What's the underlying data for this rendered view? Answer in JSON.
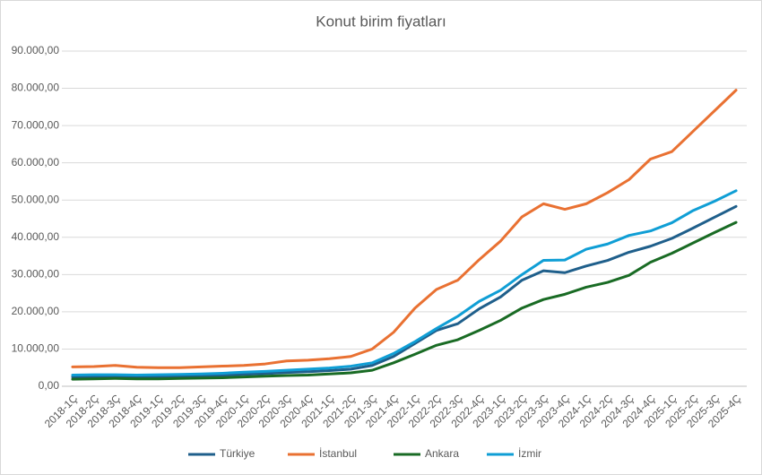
{
  "chart_data": {
    "type": "line",
    "title": "Konut birim fiyatları",
    "categories": [
      "2018-1Ç",
      "2018-2Ç",
      "2018-3Ç",
      "2018-4Ç",
      "2019-1Ç",
      "2019-2Ç",
      "2019-3Ç",
      "2019-4Ç",
      "2020-1Ç",
      "2020-2Ç",
      "2020-3Ç",
      "2020-4Ç",
      "2021-1Ç",
      "2021-2Ç",
      "2021-3Ç",
      "2021-4Ç",
      "2022-1Ç",
      "2022-2Ç",
      "2022-3Ç",
      "2022-4Ç",
      "2023-1Ç",
      "2023-2Ç",
      "2023-3Ç",
      "2023-4Ç",
      "2024-1Ç",
      "2024-2Ç",
      "2024-3Ç",
      "2024-4Ç",
      "2025-1Ç",
      "2025-2Ç",
      "2025-3Ç",
      "2025-4Ç"
    ],
    "series": [
      {
        "name": "Türkiye",
        "color": "#1f5f8b",
        "values": [
          2500,
          2600,
          2600,
          2500,
          2500,
          2600,
          2700,
          2900,
          3200,
          3400,
          3700,
          3900,
          4200,
          4600,
          5600,
          8000,
          11500,
          15000,
          16800,
          20800,
          24000,
          28500,
          31000,
          30500,
          32300,
          33800,
          36000,
          37600,
          39700,
          42500,
          45400,
          48300
        ]
      },
      {
        "name": "İstanbul",
        "color": "#e97132",
        "values": [
          5200,
          5300,
          5600,
          5100,
          5000,
          5000,
          5200,
          5400,
          5600,
          6000,
          6800,
          7000,
          7400,
          8000,
          10000,
          14500,
          21000,
          26000,
          28500,
          34000,
          39000,
          45500,
          49000,
          47500,
          49000,
          52000,
          55500,
          61000,
          63000,
          68500,
          74000,
          79500
        ]
      },
      {
        "name": "Ankara",
        "color": "#196b24",
        "values": [
          1900,
          2000,
          2100,
          2000,
          2000,
          2100,
          2200,
          2300,
          2500,
          2700,
          2900,
          3000,
          3300,
          3600,
          4300,
          6300,
          8600,
          11000,
          12500,
          15000,
          17700,
          21000,
          23300,
          24700,
          26600,
          27900,
          29800,
          33300,
          35700,
          38500,
          41300,
          44000
        ]
      },
      {
        "name": "İzmir",
        "color": "#0f9ed5",
        "values": [
          3000,
          3100,
          3100,
          3000,
          3100,
          3200,
          3300,
          3500,
          3800,
          4000,
          4300,
          4600,
          4900,
          5400,
          6300,
          8800,
          12000,
          15500,
          18800,
          22800,
          25800,
          30000,
          33800,
          33900,
          36800,
          38200,
          40500,
          41700,
          43900,
          47200,
          49700,
          52500
        ]
      }
    ],
    "ylim": [
      0,
      90000
    ],
    "yticks": [
      {
        "value": 0,
        "label": "0,00"
      },
      {
        "value": 10000,
        "label": "10.000,00"
      },
      {
        "value": 20000,
        "label": "20.000,00"
      },
      {
        "value": 30000,
        "label": "30.000,00"
      },
      {
        "value": 40000,
        "label": "40.000,00"
      },
      {
        "value": 50000,
        "label": "50.000,00"
      },
      {
        "value": 60000,
        "label": "60.000,00"
      },
      {
        "value": 70000,
        "label": "70.000,00"
      },
      {
        "value": 80000,
        "label": "80.000,00"
      },
      {
        "value": 90000,
        "label": "90.000,00"
      }
    ],
    "grid": true,
    "legend": "bottom"
  }
}
